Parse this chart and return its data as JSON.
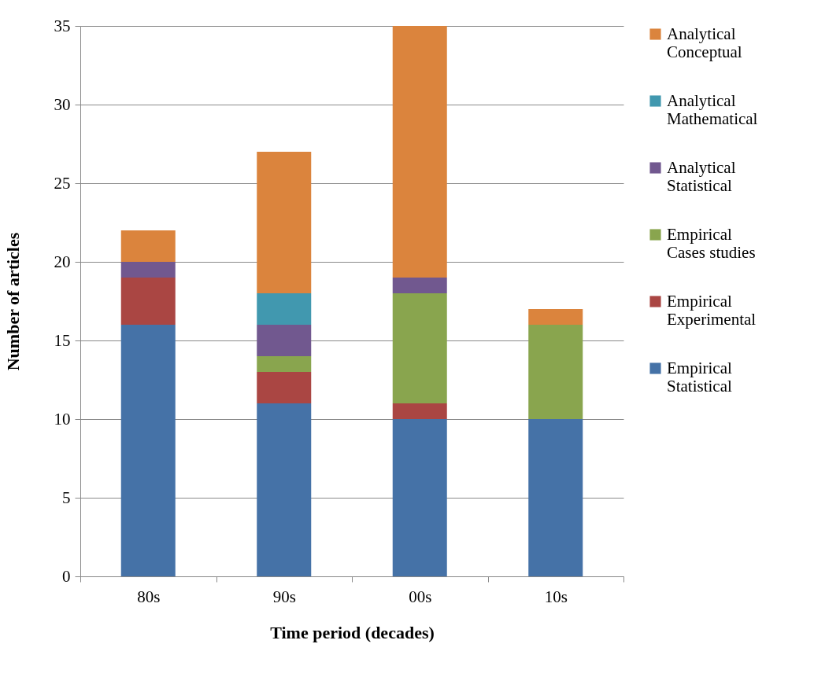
{
  "chart_data": {
    "type": "bar",
    "stacked": true,
    "xlabel": "Time period (decades)",
    "ylabel": "Number of articles",
    "categories": [
      "80s",
      "90s",
      "00s",
      "10s"
    ],
    "series": [
      {
        "name": "Empirical Statistical",
        "color": "#4572a7",
        "values": [
          16,
          11,
          10,
          10
        ]
      },
      {
        "name": "Empirical Experimental",
        "color": "#aa4643",
        "values": [
          3,
          2,
          1,
          0
        ]
      },
      {
        "name": "Empirical Cases studies",
        "color": "#89a54e",
        "values": [
          0,
          1,
          7,
          6
        ]
      },
      {
        "name": "Analytical Statistical",
        "color": "#71588f",
        "values": [
          1,
          2,
          1,
          0
        ]
      },
      {
        "name": "Analytical Mathematical",
        "color": "#4198af",
        "values": [
          0,
          2,
          0,
          0
        ]
      },
      {
        "name": "Analytical Conceptual",
        "color": "#db843d",
        "values": [
          2,
          9,
          16,
          1
        ]
      }
    ],
    "ylim": [
      0,
      35
    ],
    "yticks": [
      0,
      5,
      10,
      15,
      20,
      25,
      30,
      35
    ],
    "grid": "y",
    "legend": "right"
  }
}
